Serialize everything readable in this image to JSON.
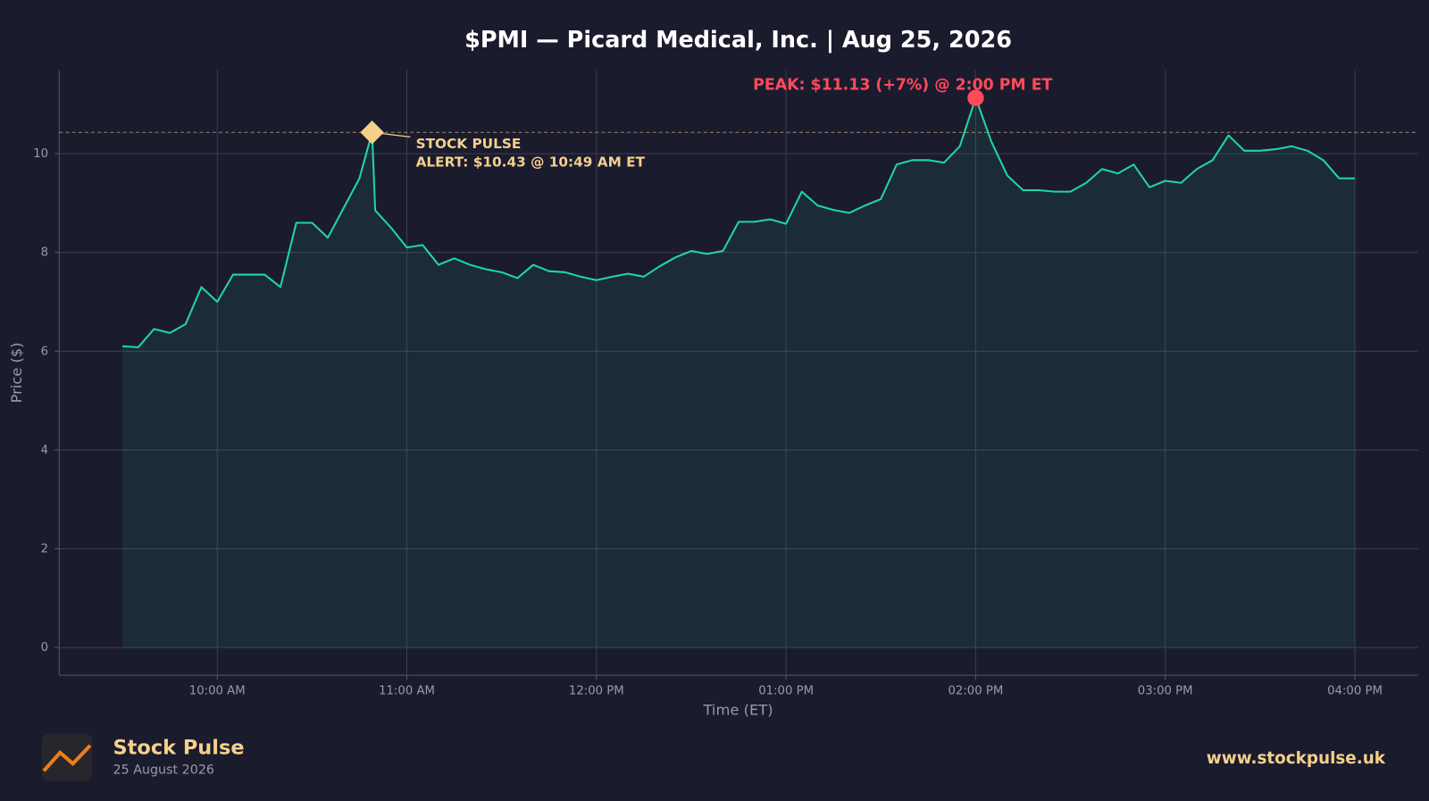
{
  "chart_data": {
    "type": "line",
    "title": "$PMI — Picard Medical, Inc.  |  Aug 25, 2026",
    "xlabel": "Time (ET)",
    "ylabel": "Price ($)",
    "x": [
      "09:30 AM",
      "09:35 AM",
      "09:40 AM",
      "09:45 AM",
      "09:50 AM",
      "09:55 AM",
      "10:00 AM",
      "10:05 AM",
      "10:10 AM",
      "10:15 AM",
      "10:20 AM",
      "10:25 AM",
      "10:30 AM",
      "10:35 AM",
      "10:40 AM",
      "10:45 AM",
      "10:49 AM",
      "10:50 AM",
      "10:55 AM",
      "11:00 AM",
      "11:05 AM",
      "11:10 AM",
      "11:15 AM",
      "11:20 AM",
      "11:25 AM",
      "11:30 AM",
      "11:35 AM",
      "11:40 AM",
      "11:45 AM",
      "11:50 AM",
      "11:55 AM",
      "12:00 PM",
      "12:05 PM",
      "12:10 PM",
      "12:15 PM",
      "12:20 PM",
      "12:25 PM",
      "12:30 PM",
      "12:35 PM",
      "12:40 PM",
      "12:45 PM",
      "12:50 PM",
      "12:55 PM",
      "01:00 PM",
      "01:05 PM",
      "01:10 PM",
      "01:15 PM",
      "01:20 PM",
      "01:25 PM",
      "01:30 PM",
      "01:35 PM",
      "01:40 PM",
      "01:45 PM",
      "01:50 PM",
      "01:55 PM",
      "02:00 PM",
      "02:05 PM",
      "02:10 PM",
      "02:15 PM",
      "02:20 PM",
      "02:25 PM",
      "02:30 PM",
      "02:35 PM",
      "02:40 PM",
      "02:45 PM",
      "02:50 PM",
      "02:55 PM",
      "03:00 PM",
      "03:05 PM",
      "03:10 PM",
      "03:15 PM",
      "03:20 PM",
      "03:25 PM",
      "03:30 PM",
      "03:35 PM",
      "03:40 PM",
      "03:45 PM",
      "03:50 PM",
      "03:55 PM",
      "04:00 PM"
    ],
    "series": [
      {
        "name": "$PMI",
        "color": "#1fd6a6",
        "values": [
          6.1,
          6.08,
          6.45,
          6.37,
          6.55,
          7.3,
          7.0,
          7.55,
          7.55,
          7.55,
          7.3,
          8.6,
          8.6,
          8.3,
          8.9,
          9.5,
          10.43,
          8.85,
          8.5,
          8.1,
          8.15,
          7.75,
          7.88,
          7.75,
          7.66,
          7.6,
          7.48,
          7.75,
          7.62,
          7.6,
          7.51,
          7.44,
          7.51,
          7.57,
          7.51,
          7.72,
          7.9,
          8.03,
          7.97,
          8.03,
          8.62,
          8.62,
          8.67,
          8.58,
          9.23,
          8.95,
          8.86,
          8.8,
          8.95,
          9.08,
          9.78,
          9.87,
          9.87,
          9.82,
          10.15,
          11.13,
          10.24,
          9.56,
          9.26,
          9.26,
          9.23,
          9.23,
          9.41,
          9.69,
          9.6,
          9.78,
          9.32,
          9.45,
          9.41,
          9.69,
          9.87,
          10.37,
          10.06,
          10.06,
          10.09,
          10.15,
          10.06,
          9.87,
          9.5,
          9.5
        ]
      }
    ],
    "xlim": [
      "09:10 AM",
      "04:20 PM"
    ],
    "xticks": [
      "10:00 AM",
      "11:00 AM",
      "12:00 PM",
      "01:00 PM",
      "02:00 PM",
      "03:00 PM",
      "04:00 PM"
    ],
    "ylim": [
      -0.56,
      11.69
    ],
    "yticks": [
      0,
      2,
      4,
      6,
      8,
      10
    ],
    "grid": true,
    "hline": 10.43,
    "alert": {
      "x": "10:49 AM",
      "y": 10.43,
      "color": "#f5d08b",
      "label": "STOCK PULSE",
      "text": "ALERT: $10.43 @ 10:49 AM ET"
    },
    "peak": {
      "x": "02:00 PM",
      "y": 11.13,
      "color": "#ff4a5c",
      "text": "PEAK: $11.13 (+7%) @ 2:00 PM ET"
    }
  },
  "footer": {
    "brand": "Stock Pulse",
    "date": "25 August 2026",
    "url": "www.stockpulse.uk"
  }
}
